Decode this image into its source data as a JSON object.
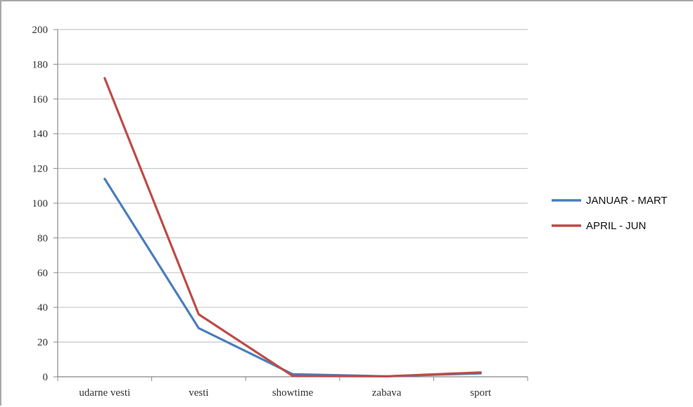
{
  "chart_data": {
    "type": "line",
    "title": "",
    "xlabel": "",
    "ylabel": "",
    "categories": [
      "udarne vesti",
      "vesti",
      "showtime",
      "zabava",
      "sport"
    ],
    "ylim": [
      0,
      200
    ],
    "yticks": [
      0,
      20,
      40,
      60,
      80,
      100,
      120,
      140,
      160,
      180,
      200
    ],
    "grid": "horizontal",
    "legend_position": "right",
    "series": [
      {
        "name": "JANUAR - MART",
        "color": "#4a7ebb",
        "values": [
          114,
          28,
          1.5,
          0.3,
          2
        ]
      },
      {
        "name": "APRIL - JUN",
        "color": "#be4b48",
        "values": [
          172,
          36,
          0.5,
          0.3,
          2.5
        ]
      }
    ]
  }
}
